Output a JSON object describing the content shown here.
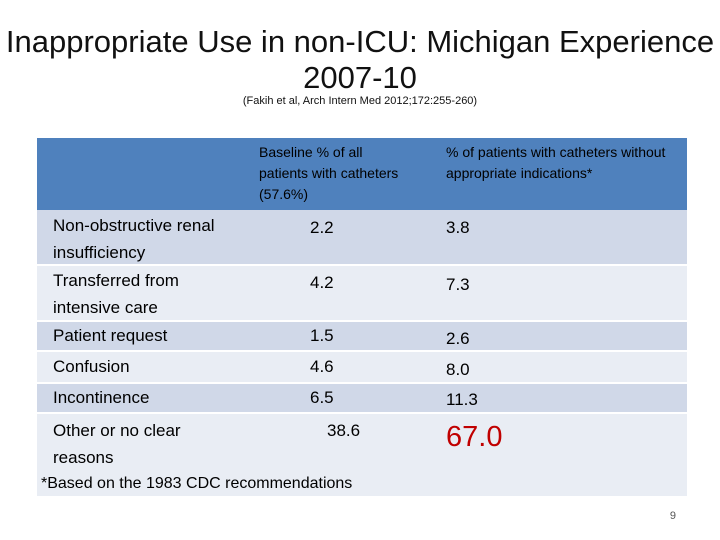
{
  "title": "Inappropriate Use in non-ICU: Michigan Experience 2007-10",
  "citation": "(Fakih et al, Arch Intern Med 2012;172:255-260)",
  "table": {
    "headers": [
      "",
      "Baseline % of all patients with catheters (57.6%)",
      "% of patients with catheters without appropriate indications*"
    ],
    "rows": [
      {
        "label": "Non-obstructive renal insufficiency",
        "baseline": "2.2",
        "inappropriate": "3.8"
      },
      {
        "label": "Transferred from intensive care",
        "baseline": "4.2",
        "inappropriate": "7.3"
      },
      {
        "label": "Patient request",
        "baseline": "1.5",
        "inappropriate": "2.6"
      },
      {
        "label": "Confusion",
        "baseline": "4.6",
        "inappropriate": "8.0"
      },
      {
        "label": "Incontinence",
        "baseline": "6.5",
        "inappropriate": "11.3"
      },
      {
        "label": "Other or no clear reasons",
        "baseline": "38.6",
        "inappropriate": "67.0"
      }
    ],
    "footnote": "*Based on the 1983 CDC recommendations"
  },
  "colors": {
    "header_bg": "#4f81bd",
    "row_a": "#d0d8e8",
    "row_b": "#e9edf4",
    "highlight": "#c00000"
  },
  "page_number": "9"
}
